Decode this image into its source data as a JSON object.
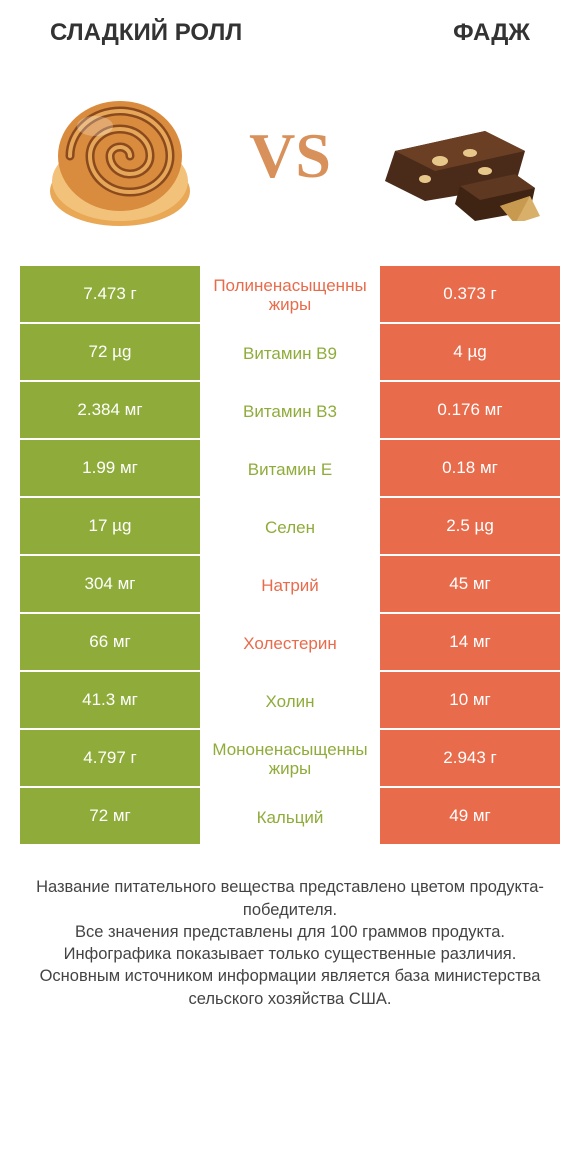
{
  "header": {
    "left_title": "СЛАДКИЙ РОЛЛ",
    "right_title": "ФАДЖ",
    "vs": "VS"
  },
  "colors": {
    "left_bg": "#8fac3a",
    "right_bg": "#e86b4b",
    "mid_left_text": "#8fac3a",
    "mid_right_text": "#e86b4b",
    "row_border": "#ffffff"
  },
  "table": {
    "rows": [
      {
        "left": "7.473 г",
        "label": "Полиненасыщенны жиры",
        "right": "0.373 г",
        "label_color_side": "right"
      },
      {
        "left": "72 µg",
        "label": "Витамин B9",
        "right": "4 µg",
        "label_color_side": "left"
      },
      {
        "left": "2.384 мг",
        "label": "Витамин B3",
        "right": "0.176 мг",
        "label_color_side": "left"
      },
      {
        "left": "1.99 мг",
        "label": "Витамин E",
        "right": "0.18 мг",
        "label_color_side": "left"
      },
      {
        "left": "17 µg",
        "label": "Селен",
        "right": "2.5 µg",
        "label_color_side": "left"
      },
      {
        "left": "304 мг",
        "label": "Натрий",
        "right": "45 мг",
        "label_color_side": "right"
      },
      {
        "left": "66 мг",
        "label": "Холестерин",
        "right": "14 мг",
        "label_color_side": "right"
      },
      {
        "left": "41.3 мг",
        "label": "Холин",
        "right": "10 мг",
        "label_color_side": "left"
      },
      {
        "left": "4.797 г",
        "label": "Мононенасыщенны жиры",
        "right": "2.943 г",
        "label_color_side": "left"
      },
      {
        "left": "72 мг",
        "label": "Кальций",
        "right": "49 мг",
        "label_color_side": "left"
      }
    ]
  },
  "footer": {
    "line1": "Название питательного вещества представлено цветом продукта-победителя.",
    "line2": "Все значения представлены для 100 граммов продукта.",
    "line3": "Инфографика показывает только существенные различия.",
    "line4": "Основным источником информации является база министерства сельского хозяйства США."
  }
}
